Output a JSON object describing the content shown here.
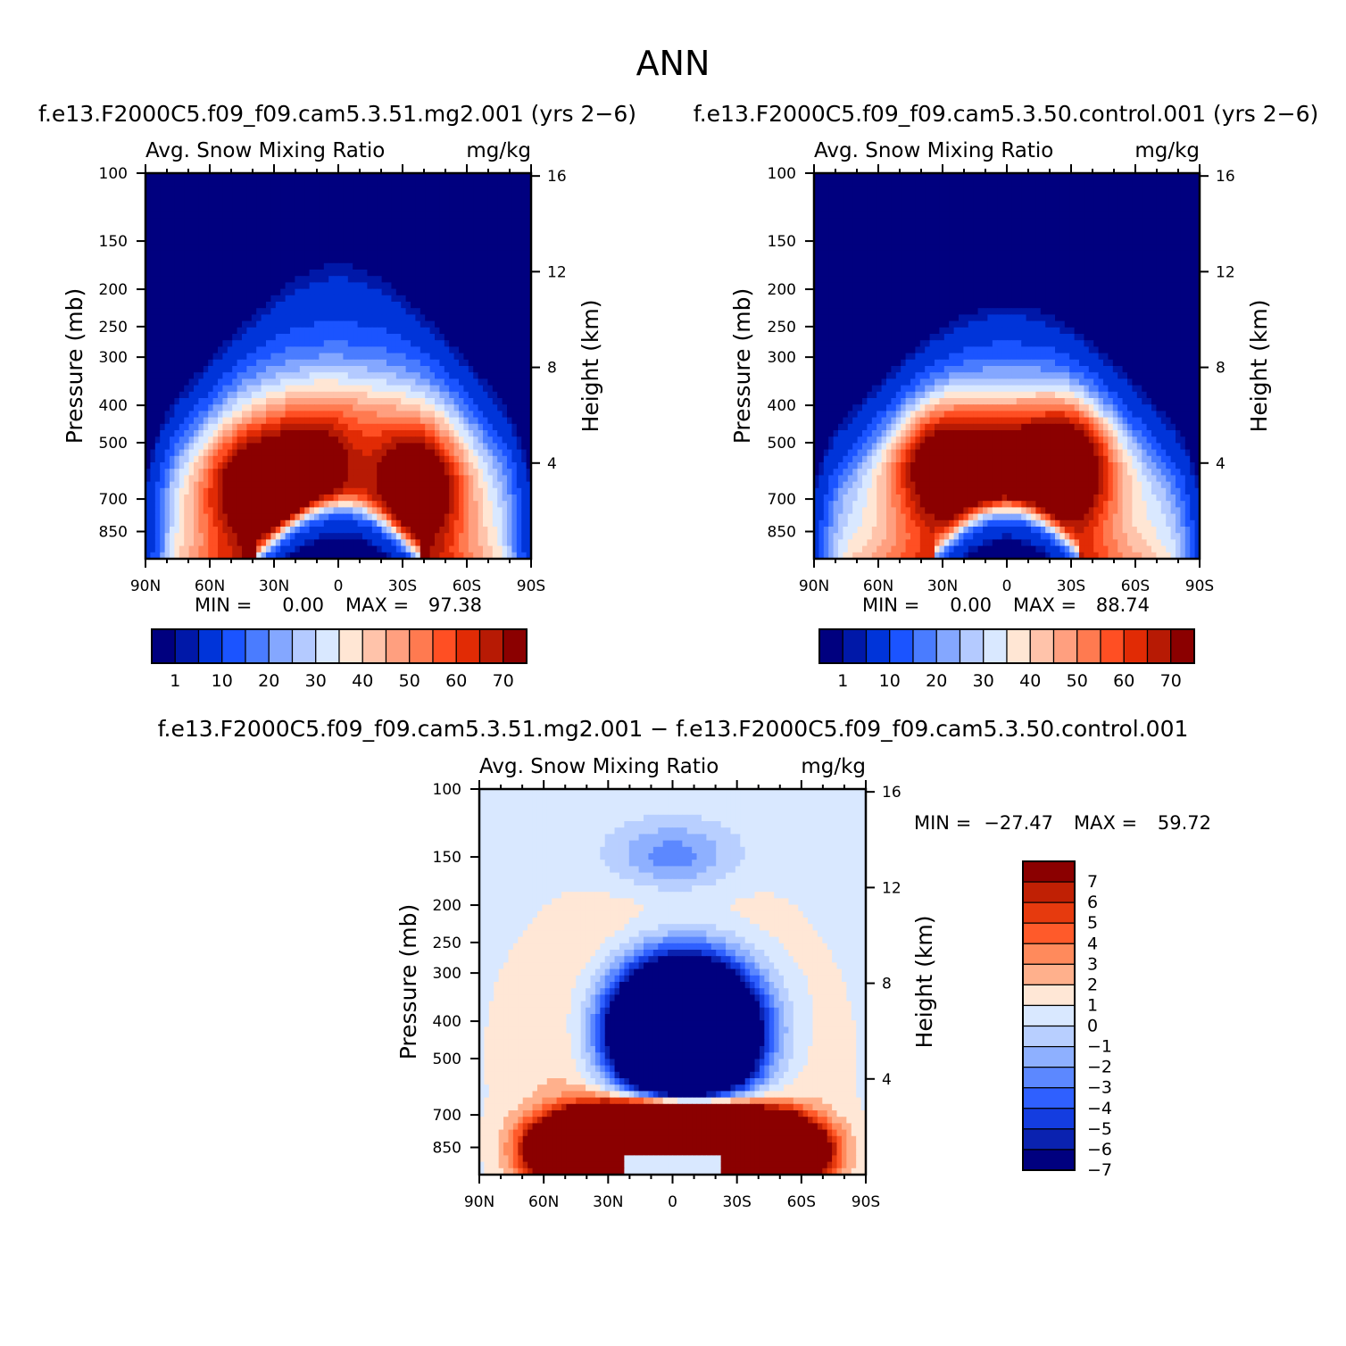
{
  "chart_data": {
    "type": "contour",
    "title": "ANN",
    "panels": [
      {
        "id": "mg2",
        "case_title": "f.e13.F2000C5.f09_f09.cam5.3.51.mg2.001  (yrs  2−6)",
        "variable": "Avg.  Snow  Mixing  Ratio",
        "units": "mg/kg",
        "ylabel": "Pressure  (mb)",
        "ylabel2": "Height  (km)",
        "yticks": [
          "100",
          "150",
          "200",
          "250",
          "300",
          "400",
          "500",
          "700",
          "850"
        ],
        "ytick_values": [
          100,
          150,
          200,
          250,
          300,
          400,
          500,
          700,
          850
        ],
        "y2ticks": [
          "16",
          "12",
          "8",
          "4"
        ],
        "y2tick_values": [
          16,
          12,
          8,
          4
        ],
        "xticks": [
          "90N",
          "60N",
          "30N",
          "0",
          "30S",
          "60S",
          "90S"
        ],
        "xtick_values": [
          90,
          60,
          30,
          0,
          -30,
          -60,
          -90
        ],
        "ylim": [
          100,
          1000
        ],
        "xlim": [
          90,
          -90
        ],
        "min_label": "MIN  =",
        "min_value": "0.00",
        "max_label": "MAX  =",
        "max_value": "97.38",
        "colorbar_labels": [
          "1",
          "10",
          "20",
          "30",
          "40",
          "50",
          "60",
          "70"
        ],
        "levels": [
          0.5,
          1,
          5,
          10,
          15,
          20,
          25,
          30,
          35,
          40,
          45,
          50,
          55,
          60,
          65,
          70
        ]
      },
      {
        "id": "control",
        "case_title": "f.e13.F2000C5.f09_f09.cam5.3.50.control.001  (yrs  2−6)",
        "variable": "Avg.  Snow  Mixing  Ratio",
        "units": "mg/kg",
        "ylabel": "Pressure  (mb)",
        "ylabel2": "Height  (km)",
        "yticks": [
          "100",
          "150",
          "200",
          "250",
          "300",
          "400",
          "500",
          "700",
          "850"
        ],
        "ytick_values": [
          100,
          150,
          200,
          250,
          300,
          400,
          500,
          700,
          850
        ],
        "y2ticks": [
          "16",
          "12",
          "8",
          "4"
        ],
        "y2tick_values": [
          16,
          12,
          8,
          4
        ],
        "xticks": [
          "90N",
          "60N",
          "30N",
          "0",
          "30S",
          "60S",
          "90S"
        ],
        "xtick_values": [
          90,
          60,
          30,
          0,
          -30,
          -60,
          -90
        ],
        "ylim": [
          100,
          1000
        ],
        "xlim": [
          90,
          -90
        ],
        "min_label": "MIN  =",
        "min_value": "0.00",
        "max_label": "MAX  =",
        "max_value": "88.74",
        "colorbar_labels": [
          "1",
          "10",
          "20",
          "30",
          "40",
          "50",
          "60",
          "70"
        ],
        "levels": [
          0.5,
          1,
          5,
          10,
          15,
          20,
          25,
          30,
          35,
          40,
          45,
          50,
          55,
          60,
          65,
          70
        ]
      },
      {
        "id": "diff",
        "case_title": "f.e13.F2000C5.f09_f09.cam5.3.51.mg2.001  −  f.e13.F2000C5.f09_f09.cam5.3.50.control.001",
        "variable": "Avg.  Snow  Mixing  Ratio",
        "units": "mg/kg",
        "ylabel": "Pressure  (mb)",
        "ylabel2": "Height  (km)",
        "yticks": [
          "100",
          "150",
          "200",
          "250",
          "300",
          "400",
          "500",
          "700",
          "850"
        ],
        "ytick_values": [
          100,
          150,
          200,
          250,
          300,
          400,
          500,
          700,
          850
        ],
        "y2ticks": [
          "16",
          "12",
          "8",
          "4"
        ],
        "y2tick_values": [
          16,
          12,
          8,
          4
        ],
        "xticks": [
          "90N",
          "60N",
          "30N",
          "0",
          "30S",
          "60S",
          "90S"
        ],
        "xtick_values": [
          90,
          60,
          30,
          0,
          -30,
          -60,
          -90
        ],
        "ylim": [
          100,
          1000
        ],
        "xlim": [
          90,
          -90
        ],
        "min_label": "MIN  =",
        "min_value": "−27.47",
        "max_label": "MAX  =",
        "max_value": "59.72",
        "colorbar_labels": [
          "7",
          "6",
          "5",
          "4",
          "3",
          "2",
          "1",
          "0",
          "−1",
          "−2",
          "−3",
          "−4",
          "−5",
          "−6",
          "−7"
        ],
        "levels": [
          -7,
          -6,
          -5,
          -4,
          -3,
          -2,
          -1,
          0,
          1,
          2,
          3,
          4,
          5,
          6,
          7
        ]
      }
    ]
  },
  "colors": {
    "field_scale": [
      "#00007f",
      "#0018a8",
      "#0034d9",
      "#1b54ff",
      "#4a7cff",
      "#84a7ff",
      "#b4caff",
      "#d9e8ff",
      "#ffe6d4",
      "#ffc3aa",
      "#ff9f7f",
      "#ff7a50",
      "#ff4f23",
      "#e12b05",
      "#b71a04",
      "#8b0000"
    ],
    "diff_scale": [
      "#8b0000",
      "#c02004",
      "#e63a0e",
      "#ff5a2a",
      "#ff8a5c",
      "#ffb08c",
      "#ffe7d6",
      "#d9e8ff",
      "#b8cfff",
      "#8eb0ff",
      "#5c88ff",
      "#2f60ff",
      "#143de0",
      "#0a22b0",
      "#00007f"
    ]
  }
}
